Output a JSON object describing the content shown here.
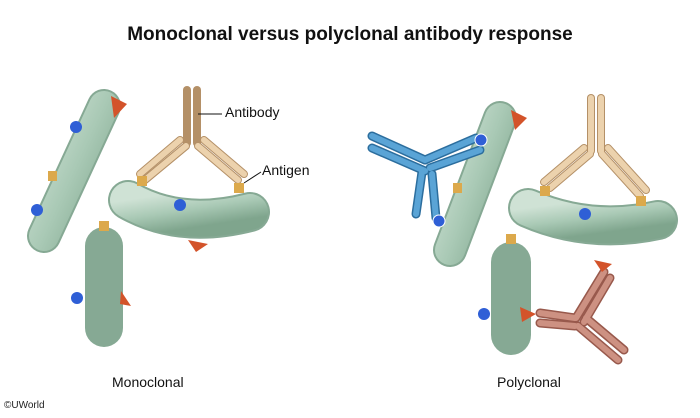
{
  "title": "Monoclonal versus polyclonal antibody response",
  "panels": {
    "monoclonal": "Monoclonal",
    "polyclonal": "Polyclonal"
  },
  "callouts": {
    "antibody": "Antibody",
    "antigen": "Antigen"
  },
  "copyright": "©UWorld",
  "colors": {
    "bacterium": "#a9c9b5",
    "antibody_monoclonal": "#e1c49c",
    "antibody_blue": "#3f8fc4",
    "antibody_red": "#bf7e6f",
    "antigen_square": "#dca94c",
    "antigen_circle": "#2f5fd6",
    "antigen_triangle": "#d3532a"
  }
}
